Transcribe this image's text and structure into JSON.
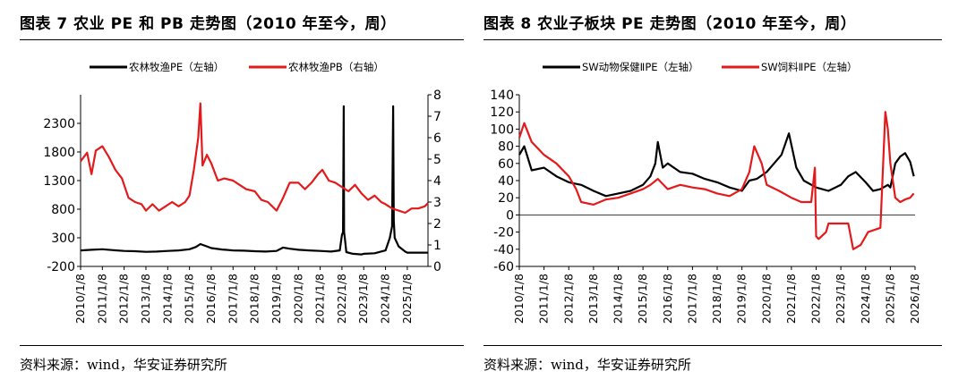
{
  "left": {
    "title": "图表 7 农业 PE 和 PB 走势图（2010 年至今，周）",
    "source": "资料来源：wind，华安证券研究所",
    "colors": {
      "pe": "#000000",
      "pb": "#e31a1c"
    }
  },
  "right": {
    "title": "图表 8 农业子板块 PE 走势图（2010 年至今，周）",
    "source": "资料来源：wind，华安证券研究所",
    "colors": {
      "animal": "#000000",
      "feed": "#e31a1c"
    }
  },
  "chart_data": [
    {
      "type": "line",
      "title": "农业 PE 和 PB 走势图",
      "xlabel": "",
      "ylabel": "",
      "x_ticks": [
        "2010/1/8",
        "2011/1/8",
        "2012/1/8",
        "2013/1/8",
        "2014/1/8",
        "2015/1/8",
        "2016/1/8",
        "2017/1/8",
        "2018/1/8",
        "2019/1/8",
        "2020/1/8",
        "2021/1/8",
        "2022/1/8",
        "2023/1/8",
        "2024/1/8",
        "2025/1/8"
      ],
      "x_range": [
        2010.0,
        2025.95
      ],
      "y_left": {
        "range": [
          -200,
          2800
        ],
        "ticks": [
          -200,
          300,
          800,
          1300,
          1800,
          2300
        ]
      },
      "y_right": {
        "range": [
          0,
          8
        ],
        "ticks": [
          0,
          1,
          2,
          3,
          4,
          5,
          6,
          7,
          8
        ]
      },
      "legend_position": "top",
      "series": [
        {
          "name": "农林牧渔PE（左轴）",
          "axis": "left",
          "x": [
            2010.0,
            2010.5,
            2011.0,
            2011.5,
            2012.0,
            2012.5,
            2013.0,
            2013.5,
            2014.0,
            2014.5,
            2015.0,
            2015.3,
            2015.5,
            2015.8,
            2016.0,
            2016.5,
            2017.0,
            2017.5,
            2018.0,
            2018.5,
            2019.0,
            2019.3,
            2019.6,
            2020.0,
            2020.5,
            2021.0,
            2021.5,
            2021.9,
            2022.0,
            2022.05,
            2022.08,
            2022.1,
            2022.13,
            2022.2,
            2022.5,
            2022.9,
            2023.0,
            2023.5,
            2024.0,
            2024.2,
            2024.3,
            2024.35,
            2024.38,
            2024.42,
            2024.6,
            2024.9,
            2025.0,
            2025.5,
            2025.95
          ],
          "y": [
            80,
            90,
            100,
            85,
            70,
            65,
            55,
            60,
            70,
            80,
            100,
            140,
            190,
            150,
            120,
            95,
            80,
            75,
            65,
            60,
            70,
            130,
            110,
            90,
            80,
            70,
            60,
            80,
            350,
            400,
            2600,
            400,
            300,
            50,
            20,
            10,
            20,
            30,
            80,
            300,
            500,
            2600,
            600,
            300,
            150,
            60,
            40,
            40,
            40
          ]
        },
        {
          "name": "农林牧渔PB（右轴）",
          "axis": "right",
          "x": [
            2010.0,
            2010.3,
            2010.5,
            2010.7,
            2011.0,
            2011.3,
            2011.6,
            2011.9,
            2012.2,
            2012.5,
            2012.8,
            2013.0,
            2013.3,
            2013.6,
            2013.9,
            2014.2,
            2014.5,
            2014.8,
            2015.0,
            2015.2,
            2015.4,
            2015.5,
            2015.6,
            2015.8,
            2016.0,
            2016.3,
            2016.6,
            2017.0,
            2017.3,
            2017.6,
            2018.0,
            2018.3,
            2018.6,
            2019.0,
            2019.3,
            2019.6,
            2020.0,
            2020.3,
            2020.6,
            2020.9,
            2021.1,
            2021.4,
            2021.7,
            2022.0,
            2022.3,
            2022.6,
            2022.9,
            2023.2,
            2023.5,
            2023.8,
            2024.0,
            2024.3,
            2024.6,
            2024.9,
            2025.2,
            2025.5,
            2025.8,
            2025.95
          ],
          "y": [
            4.9,
            5.3,
            4.3,
            5.4,
            5.6,
            5.1,
            4.5,
            4.1,
            3.2,
            3.0,
            2.9,
            2.6,
            2.9,
            2.6,
            2.8,
            3.0,
            2.8,
            3.0,
            3.3,
            4.5,
            6.0,
            7.6,
            4.7,
            5.2,
            4.8,
            4.0,
            4.1,
            4.0,
            3.8,
            3.6,
            3.5,
            3.1,
            3.0,
            2.6,
            3.2,
            3.9,
            3.9,
            3.6,
            3.9,
            4.3,
            4.5,
            4.0,
            3.9,
            3.7,
            3.5,
            3.8,
            3.4,
            3.1,
            3.3,
            3.0,
            2.9,
            2.7,
            2.6,
            2.5,
            2.7,
            2.7,
            2.8,
            2.95
          ]
        }
      ]
    },
    {
      "type": "line",
      "title": "农业子板块 PE 走势图",
      "xlabel": "",
      "ylabel": "",
      "x_ticks": [
        "2010/1/8",
        "2011/1/8",
        "2012/1/8",
        "2013/1/8",
        "2014/1/8",
        "2015/1/8",
        "2016/1/8",
        "2017/1/8",
        "2018/1/8",
        "2019/1/8",
        "2020/1/8",
        "2021/1/8",
        "2022/1/8",
        "2023/1/8",
        "2024/1/8",
        "2025/1/8",
        "2026/1/8"
      ],
      "x_range": [
        2010.0,
        2026.0
      ],
      "y_left": {
        "range": [
          -60,
          140
        ],
        "ticks": [
          -60,
          -40,
          -20,
          0,
          20,
          40,
          60,
          80,
          100,
          120,
          140
        ]
      },
      "legend_position": "top",
      "series": [
        {
          "name": "SW动物保健ⅡPE（左轴）",
          "axis": "left",
          "x": [
            2010.0,
            2010.2,
            2010.5,
            2011.0,
            2011.5,
            2012.0,
            2012.5,
            2013.0,
            2013.5,
            2014.0,
            2014.5,
            2015.0,
            2015.3,
            2015.5,
            2015.6,
            2015.8,
            2016.0,
            2016.5,
            2017.0,
            2017.5,
            2018.0,
            2018.5,
            2019.0,
            2019.3,
            2019.6,
            2020.0,
            2020.3,
            2020.6,
            2020.9,
            2021.2,
            2021.5,
            2022.0,
            2022.5,
            2023.0,
            2023.3,
            2023.6,
            2024.0,
            2024.3,
            2024.6,
            2024.9,
            2025.0,
            2025.2,
            2025.4,
            2025.6,
            2025.8,
            2025.95
          ],
          "y": [
            70,
            80,
            52,
            55,
            45,
            38,
            35,
            28,
            22,
            25,
            28,
            35,
            45,
            60,
            85,
            55,
            60,
            50,
            48,
            42,
            38,
            32,
            28,
            40,
            42,
            50,
            60,
            70,
            95,
            55,
            40,
            32,
            28,
            35,
            45,
            50,
            38,
            28,
            30,
            35,
            32,
            60,
            68,
            72,
            62,
            45
          ]
        },
        {
          "name": "SW饲料ⅡPE（左轴）",
          "axis": "left",
          "x": [
            2010.0,
            2010.2,
            2010.5,
            2011.0,
            2011.5,
            2012.0,
            2012.3,
            2012.5,
            2013.0,
            2013.5,
            2014.0,
            2014.5,
            2015.0,
            2015.3,
            2015.6,
            2016.0,
            2016.5,
            2017.0,
            2017.5,
            2018.0,
            2018.5,
            2019.0,
            2019.3,
            2019.5,
            2019.8,
            2020.0,
            2020.5,
            2021.0,
            2021.4,
            2021.8,
            2021.95,
            2022.0,
            2022.1,
            2022.4,
            2022.5,
            2023.0,
            2023.3,
            2023.5,
            2023.8,
            2024.0,
            2024.1,
            2024.3,
            2024.6,
            2024.8,
            2024.9,
            2025.0,
            2025.2,
            2025.4,
            2025.6,
            2025.8,
            2025.95
          ],
          "y": [
            90,
            107,
            85,
            70,
            60,
            45,
            30,
            15,
            12,
            18,
            20,
            25,
            30,
            35,
            42,
            30,
            35,
            32,
            30,
            25,
            22,
            30,
            50,
            80,
            60,
            35,
            28,
            20,
            15,
            15,
            55,
            -25,
            -28,
            -20,
            -10,
            -10,
            -10,
            -40,
            -35,
            -25,
            -20,
            -18,
            -15,
            120,
            100,
            60,
            20,
            15,
            18,
            20,
            25
          ]
        }
      ]
    }
  ],
  "legend_labels": {
    "left_pe": "农林牧渔PE（左轴）",
    "left_pb": "农林牧渔PB（右轴）",
    "right_animal": "SW动物保健ⅡPE（左轴）",
    "right_feed": "SW饲料ⅡPE（左轴）"
  }
}
